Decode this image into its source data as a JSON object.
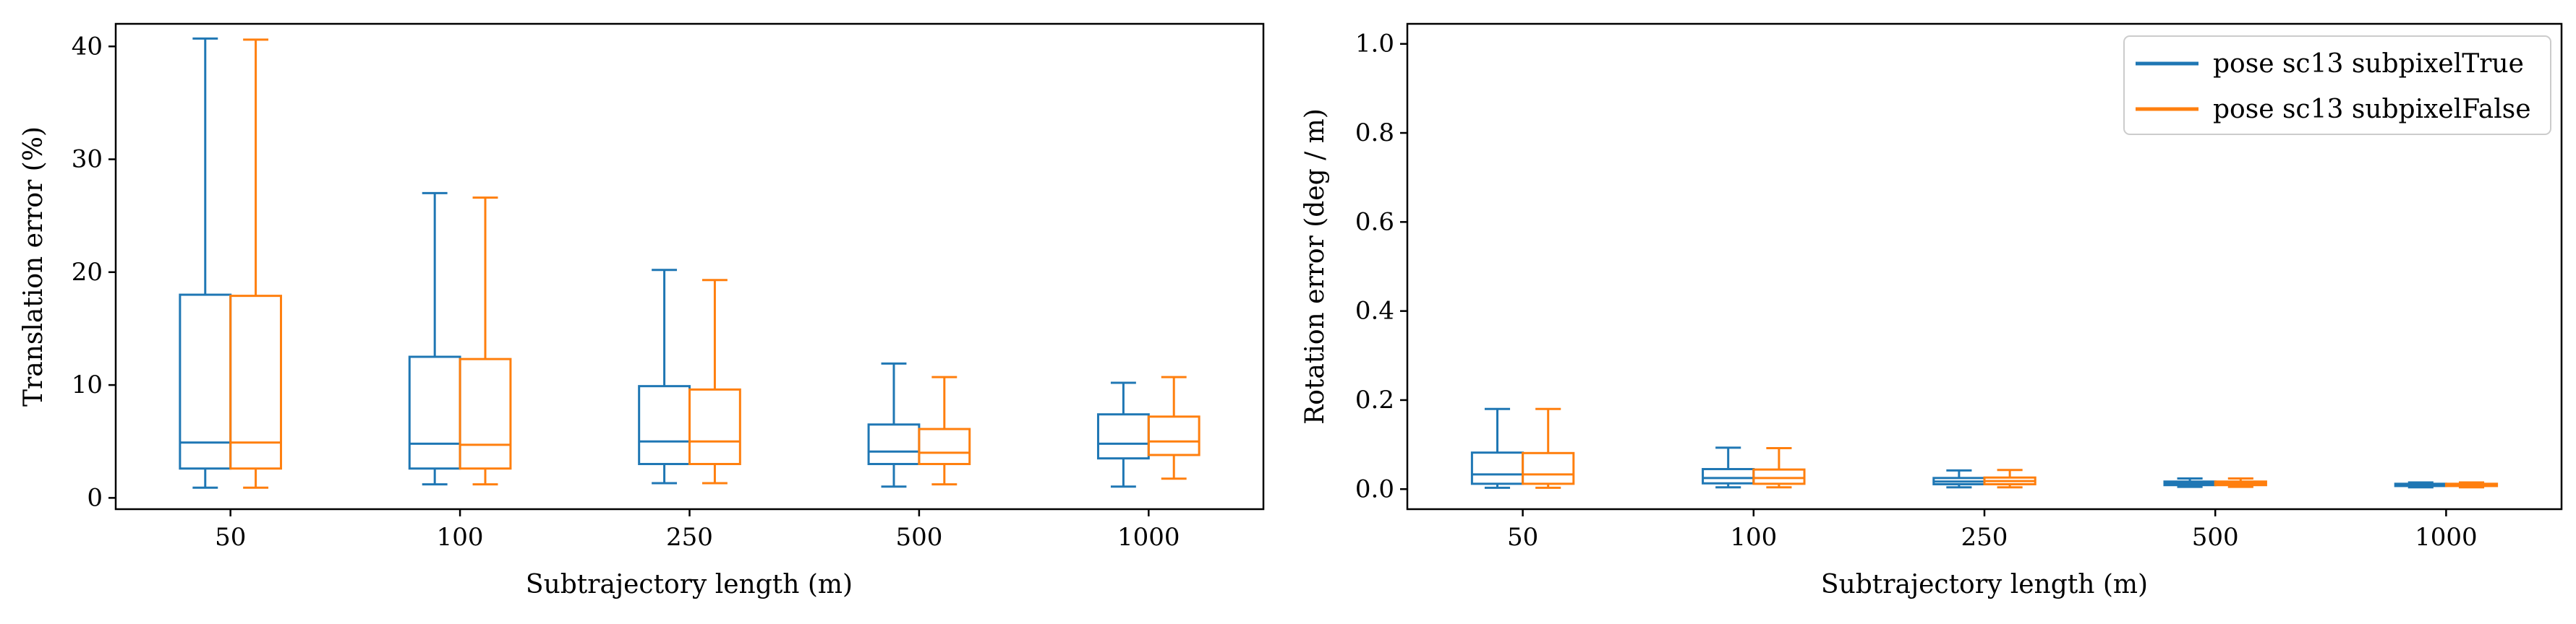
{
  "chart_data": [
    {
      "type": "box",
      "xlabel": "Subtrajectory length (m)",
      "ylabel": "Translation error (%)",
      "categories": [
        "50",
        "100",
        "250",
        "500",
        "1000"
      ],
      "ylim": [
        -1,
        42
      ],
      "yticks": [
        0,
        10,
        20,
        30,
        40
      ],
      "grid": false,
      "series": [
        {
          "name": "pose sc13 subpixelTrue",
          "color": "#1f77b4",
          "boxes": [
            {
              "whislo": 0.9,
              "q1": 2.6,
              "med": 4.9,
              "q3": 18.0,
              "whishi": 40.7
            },
            {
              "whislo": 1.2,
              "q1": 2.6,
              "med": 4.8,
              "q3": 12.5,
              "whishi": 27.0
            },
            {
              "whislo": 1.3,
              "q1": 3.0,
              "med": 5.0,
              "q3": 9.9,
              "whishi": 20.2
            },
            {
              "whislo": 1.0,
              "q1": 3.0,
              "med": 4.1,
              "q3": 6.5,
              "whishi": 11.9
            },
            {
              "whislo": 1.0,
              "q1": 3.5,
              "med": 4.8,
              "q3": 7.4,
              "whishi": 10.2
            }
          ]
        },
        {
          "name": "pose sc13 subpixelFalse",
          "color": "#ff7f0e",
          "boxes": [
            {
              "whislo": 0.9,
              "q1": 2.6,
              "med": 4.9,
              "q3": 17.9,
              "whishi": 40.6
            },
            {
              "whislo": 1.2,
              "q1": 2.6,
              "med": 4.7,
              "q3": 12.3,
              "whishi": 26.6
            },
            {
              "whislo": 1.3,
              "q1": 3.0,
              "med": 5.0,
              "q3": 9.6,
              "whishi": 19.3
            },
            {
              "whislo": 1.2,
              "q1": 3.0,
              "med": 4.0,
              "q3": 6.1,
              "whishi": 10.7
            },
            {
              "whislo": 1.7,
              "q1": 3.8,
              "med": 5.0,
              "q3": 7.2,
              "whishi": 10.7
            }
          ]
        }
      ]
    },
    {
      "type": "box",
      "xlabel": "Subtrajectory length (m)",
      "ylabel": "Rotation error (deg / m)",
      "categories": [
        "50",
        "100",
        "250",
        "500",
        "1000"
      ],
      "ylim": [
        -0.045,
        1.045
      ],
      "yticks": [
        "0.0",
        "0.2",
        "0.4",
        "0.6",
        "0.8",
        "1.0"
      ],
      "grid": false,
      "legend": "top-right",
      "series": [
        {
          "name": "pose sc13 subpixelTrue",
          "color": "#1f77b4",
          "boxes": [
            {
              "whislo": 0.003,
              "q1": 0.012,
              "med": 0.033,
              "q3": 0.082,
              "whishi": 0.18
            },
            {
              "whislo": 0.004,
              "q1": 0.013,
              "med": 0.025,
              "q3": 0.045,
              "whishi": 0.093
            },
            {
              "whislo": 0.004,
              "q1": 0.011,
              "med": 0.017,
              "q3": 0.025,
              "whishi": 0.042
            },
            {
              "whislo": 0.005,
              "q1": 0.009,
              "med": 0.013,
              "q3": 0.017,
              "whishi": 0.024
            },
            {
              "whislo": 0.004,
              "q1": 0.007,
              "med": 0.009,
              "q3": 0.012,
              "whishi": 0.015
            }
          ]
        },
        {
          "name": "pose sc13 subpixelFalse",
          "color": "#ff7f0e",
          "boxes": [
            {
              "whislo": 0.003,
              "q1": 0.012,
              "med": 0.033,
              "q3": 0.081,
              "whishi": 0.18
            },
            {
              "whislo": 0.004,
              "q1": 0.012,
              "med": 0.025,
              "q3": 0.044,
              "whishi": 0.092
            },
            {
              "whislo": 0.004,
              "q1": 0.011,
              "med": 0.018,
              "q3": 0.026,
              "whishi": 0.043
            },
            {
              "whislo": 0.005,
              "q1": 0.009,
              "med": 0.013,
              "q3": 0.017,
              "whishi": 0.024
            },
            {
              "whislo": 0.004,
              "q1": 0.007,
              "med": 0.009,
              "q3": 0.012,
              "whishi": 0.015
            }
          ]
        }
      ]
    }
  ]
}
